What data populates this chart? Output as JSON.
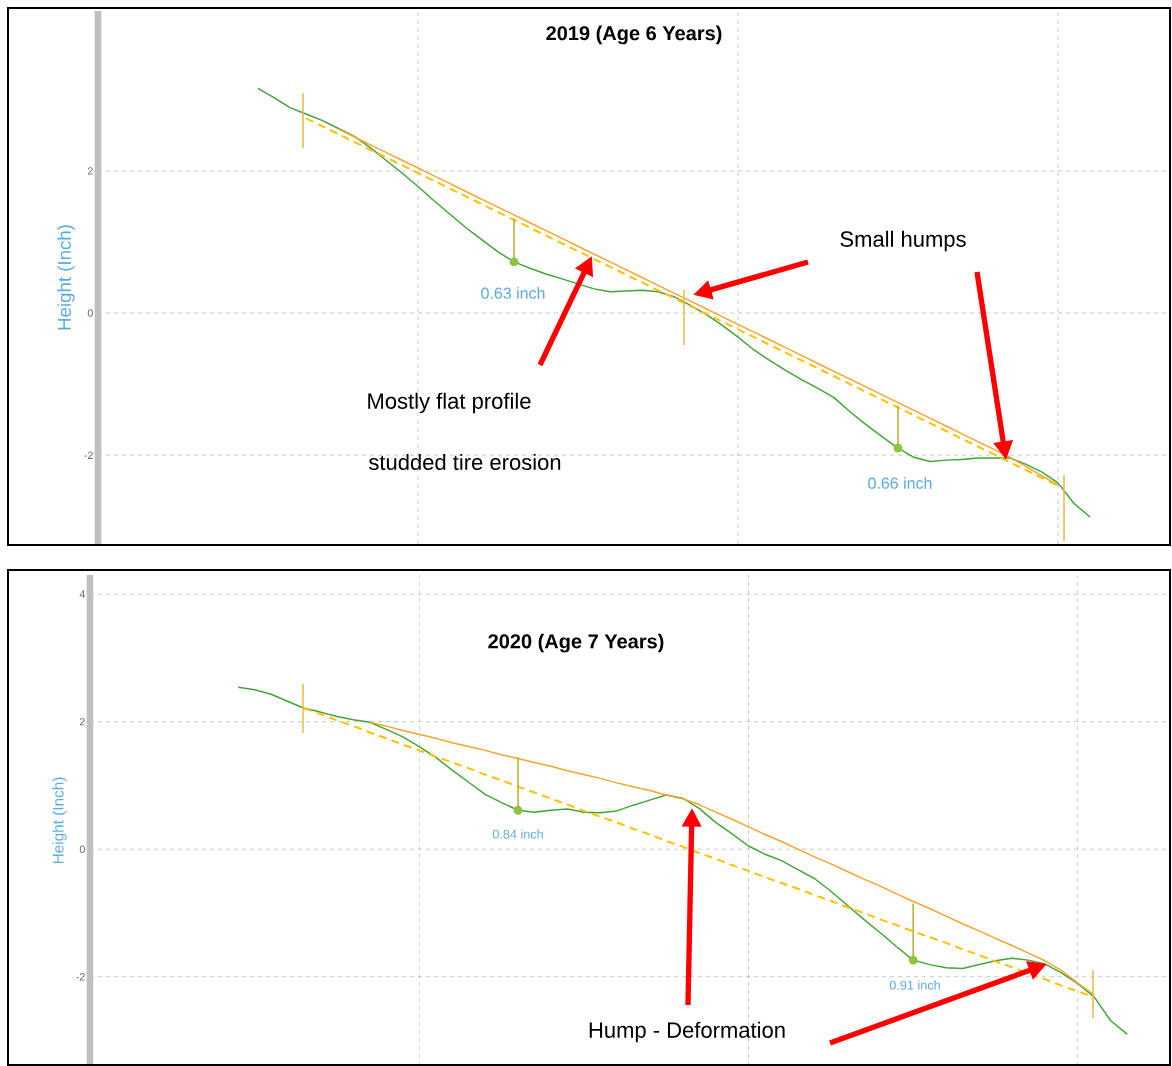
{
  "chart_data": [
    {
      "type": "line",
      "title": "2019 (Age 6 Years)",
      "ylabel": "Height (Inch)",
      "ylim": [
        -3.25,
        4.25
      ],
      "yticks": [
        -2,
        0,
        2
      ],
      "grid": true,
      "tick_labels": "y",
      "categories": [
        null,
        null,
        null,
        null,
        null,
        null,
        null,
        null,
        null,
        null,
        null,
        null,
        null,
        null,
        null,
        null,
        null,
        null,
        null,
        null,
        null,
        null,
        null,
        null,
        null,
        null,
        null,
        null,
        null,
        null,
        null,
        null,
        null,
        null,
        null,
        null,
        null,
        null,
        null,
        null,
        null,
        null,
        null,
        null,
        null,
        null,
        null,
        null,
        null,
        null,
        null,
        null,
        null,
        null,
        null,
        null,
        null,
        null,
        null,
        null,
        null,
        null,
        null,
        null,
        null,
        null,
        null
      ],
      "series": [
        {
          "color": "#43a33a",
          "values": [
            null,
            null,
            null,
            null,
            null,
            null,
            null,
            null,
            null,
            null,
            3.16,
            3.03,
            2.89,
            2.8,
            2.71,
            2.6,
            2.49,
            2.33,
            2.15,
            1.97,
            1.78,
            1.58,
            1.39,
            1.2,
            1.03,
            0.86,
            0.72,
            0.63,
            0.55,
            0.48,
            0.41,
            0.34,
            0.3,
            0.31,
            0.32,
            0.3,
            0.23,
            0.11,
            -0.02,
            -0.17,
            -0.34,
            -0.52,
            -0.67,
            -0.81,
            -0.94,
            -1.06,
            -1.19,
            -1.39,
            -1.57,
            -1.74,
            -1.9,
            -2.03,
            -2.09,
            -2.07,
            -2.06,
            -2.04,
            -2.04,
            -2.04,
            -2.13,
            -2.24,
            -2.39,
            -2.68,
            -2.87,
            null,
            null,
            null,
            null
          ]
        },
        {
          "color": "#f5a42f",
          "values": [
            null,
            null,
            null,
            null,
            null,
            null,
            null,
            null,
            null,
            null,
            null,
            null,
            null,
            null,
            null,
            2.59,
            2.48,
            2.37,
            2.26,
            2.15,
            2.04,
            1.93,
            1.82,
            1.71,
            1.6,
            1.49,
            1.38,
            1.27,
            1.16,
            1.05,
            0.94,
            0.83,
            0.72,
            0.61,
            0.5,
            0.39,
            0.28,
            0.17,
            0.06,
            -0.05,
            -0.16,
            -0.27,
            -0.38,
            -0.49,
            -0.6,
            -0.71,
            -0.82,
            -0.93,
            -1.04,
            -1.15,
            -1.26,
            -1.37,
            -1.48,
            -1.59,
            -1.7,
            -1.81,
            -1.92,
            -2.03,
            -2.16,
            -2.29,
            -2.42,
            null,
            null,
            null,
            null,
            null,
            null
          ]
        },
        {
          "color": "#ffc000",
          "line_style": "dashed",
          "values": [
            null,
            null,
            null,
            null,
            null,
            null,
            null,
            null,
            null,
            null,
            null,
            null,
            null,
            2.74,
            2.63,
            2.52,
            2.41,
            2.3,
            2.19,
            2.08,
            1.97,
            1.86,
            1.75,
            1.64,
            1.53,
            1.42,
            1.31,
            1.2,
            1.09,
            0.98,
            0.87,
            0.76,
            0.65,
            0.54,
            0.43,
            0.32,
            0.21,
            0.1,
            -0.01,
            -0.12,
            -0.23,
            -0.34,
            -0.45,
            -0.56,
            -0.67,
            -0.78,
            -0.89,
            -1.0,
            -1.11,
            -1.22,
            -1.33,
            -1.44,
            -1.55,
            -1.66,
            -1.77,
            -1.88,
            -1.99,
            -2.1,
            -2.21,
            -2.32,
            -2.43,
            null,
            null,
            null,
            null,
            null,
            null
          ]
        },
        {
          "type": "scatter",
          "marker": "circle",
          "color": "#8cc63f",
          "values": [
            null,
            null,
            null,
            null,
            null,
            null,
            null,
            null,
            null,
            null,
            null,
            null,
            null,
            null,
            null,
            null,
            null,
            null,
            null,
            null,
            null,
            null,
            null,
            null,
            null,
            null,
            0.72,
            null,
            null,
            null,
            null,
            null,
            null,
            null,
            null,
            null,
            null,
            null,
            null,
            null,
            null,
            null,
            null,
            null,
            null,
            null,
            null,
            null,
            null,
            null,
            -1.9,
            null,
            null,
            null,
            null,
            null,
            null,
            null,
            null,
            null,
            null,
            null,
            null,
            null,
            null,
            null,
            null
          ],
          "errors": [
            null,
            null,
            null,
            null,
            null,
            null,
            null,
            null,
            null,
            null,
            null,
            null,
            null,
            null,
            null,
            null,
            null,
            null,
            null,
            null,
            null,
            null,
            null,
            null,
            null,
            null,
            [
              0.72,
              1.33
            ],
            null,
            null,
            null,
            null,
            null,
            null,
            null,
            null,
            null,
            null,
            null,
            null,
            null,
            null,
            null,
            null,
            null,
            null,
            null,
            null,
            null,
            null,
            null,
            [
              -1.9,
              -1.3
            ],
            null,
            null,
            null,
            null,
            null,
            null,
            null,
            null,
            null,
            null,
            null,
            null,
            null,
            null,
            null,
            null
          ]
        }
      ],
      "annotations": [
        "0.63 inch",
        "0.66 inch",
        "Mostly flat profile",
        "studded tire erosion",
        "Small humps"
      ]
    },
    {
      "type": "line",
      "title": "2020 (Age 7 Years)",
      "ylabel": "Height (Inch)",
      "ylim": [
        -3.4,
        4.3
      ],
      "yticks": [
        -2,
        0,
        2,
        4
      ],
      "grid": true,
      "tick_labels": "y",
      "categories": [
        null,
        null,
        null,
        null,
        null,
        null,
        null,
        null,
        null,
        null,
        null,
        null,
        null,
        null,
        null,
        null,
        null,
        null,
        null,
        null,
        null,
        null,
        null,
        null,
        null,
        null,
        null,
        null,
        null,
        null,
        null,
        null,
        null,
        null,
        null,
        null,
        null,
        null,
        null,
        null,
        null,
        null,
        null,
        null,
        null,
        null,
        null,
        null,
        null,
        null,
        null,
        null,
        null,
        null,
        null,
        null,
        null,
        null,
        null,
        null,
        null,
        null,
        null,
        null,
        null,
        null
      ],
      "series": [
        {
          "color": "#43a33a",
          "values": [
            null,
            null,
            null,
            null,
            null,
            null,
            null,
            null,
            null,
            2.54,
            2.5,
            2.43,
            2.32,
            2.21,
            2.15,
            2.08,
            2.03,
            1.99,
            1.88,
            1.76,
            1.61,
            1.44,
            1.24,
            1.05,
            0.86,
            0.73,
            0.61,
            0.58,
            0.61,
            0.63,
            0.58,
            0.57,
            0.6,
            0.69,
            0.77,
            0.85,
            0.8,
            0.64,
            0.42,
            0.24,
            0.05,
            -0.08,
            -0.18,
            -0.32,
            -0.46,
            -0.66,
            -0.88,
            -1.1,
            -1.31,
            -1.53,
            -1.74,
            -1.81,
            -1.86,
            -1.87,
            -1.81,
            -1.75,
            -1.71,
            -1.74,
            -1.8,
            -1.94,
            -2.11,
            -2.32,
            -2.69,
            -2.9,
            null,
            null
          ]
        },
        {
          "color": "#f5a42f",
          "values": [
            null,
            null,
            null,
            null,
            null,
            null,
            null,
            null,
            null,
            null,
            null,
            null,
            null,
            null,
            null,
            null,
            null,
            1.99,
            1.93,
            1.86,
            1.8,
            1.74,
            1.67,
            1.61,
            1.55,
            1.48,
            1.42,
            1.36,
            1.3,
            1.23,
            1.17,
            1.11,
            1.04,
            0.98,
            0.92,
            0.85,
            0.79,
            0.7,
            0.58,
            0.47,
            0.35,
            0.23,
            0.12,
            0.0,
            -0.12,
            -0.23,
            -0.35,
            -0.47,
            -0.58,
            -0.7,
            -0.82,
            -0.93,
            -1.05,
            -1.17,
            -1.28,
            -1.4,
            -1.51,
            -1.63,
            -1.75,
            -1.9,
            -2.1,
            -2.29,
            null,
            null,
            null,
            null
          ]
        },
        {
          "color": "#ffc000",
          "line_style": "dashed",
          "values": [
            null,
            null,
            null,
            null,
            null,
            null,
            null,
            null,
            null,
            null,
            null,
            null,
            null,
            2.21,
            2.12,
            2.02,
            1.93,
            1.83,
            1.74,
            1.64,
            1.55,
            1.45,
            1.36,
            1.27,
            1.17,
            1.08,
            0.98,
            0.89,
            0.79,
            0.7,
            0.6,
            0.51,
            0.42,
            0.32,
            0.23,
            0.13,
            0.04,
            -0.06,
            -0.15,
            -0.25,
            -0.34,
            -0.44,
            -0.53,
            -0.62,
            -0.72,
            -0.81,
            -0.91,
            -1.0,
            -1.1,
            -1.19,
            -1.29,
            -1.38,
            -1.47,
            -1.57,
            -1.66,
            -1.76,
            -1.85,
            -1.95,
            -2.04,
            -2.14,
            -2.23,
            -2.32,
            null,
            null,
            null,
            null
          ]
        },
        {
          "type": "scatter",
          "marker": "circle",
          "color": "#8cc63f",
          "values": [
            null,
            null,
            null,
            null,
            null,
            null,
            null,
            null,
            null,
            null,
            null,
            null,
            null,
            null,
            null,
            null,
            null,
            null,
            null,
            null,
            null,
            null,
            null,
            null,
            null,
            null,
            0.61,
            null,
            null,
            null,
            null,
            null,
            null,
            null,
            null,
            null,
            null,
            null,
            null,
            null,
            null,
            null,
            null,
            null,
            null,
            null,
            null,
            null,
            null,
            null,
            -1.74,
            null,
            null,
            null,
            null,
            null,
            null,
            null,
            null,
            null,
            null,
            null,
            null,
            null,
            null,
            null
          ],
          "errors": [
            null,
            null,
            null,
            null,
            null,
            null,
            null,
            null,
            null,
            null,
            null,
            null,
            null,
            null,
            null,
            null,
            null,
            null,
            null,
            null,
            null,
            null,
            null,
            null,
            null,
            null,
            [
              0.61,
              1.44
            ],
            null,
            null,
            null,
            null,
            null,
            null,
            null,
            null,
            null,
            null,
            null,
            null,
            null,
            null,
            null,
            null,
            null,
            null,
            null,
            null,
            null,
            null,
            null,
            [
              -1.74,
              -0.85
            ],
            null,
            null,
            null,
            null,
            null,
            null,
            null,
            null,
            null,
            null,
            null,
            null,
            null,
            null,
            null
          ]
        }
      ],
      "annotations": [
        "0.84 inch",
        "0.91 inch",
        "Hump - Deformation"
      ]
    }
  ]
}
